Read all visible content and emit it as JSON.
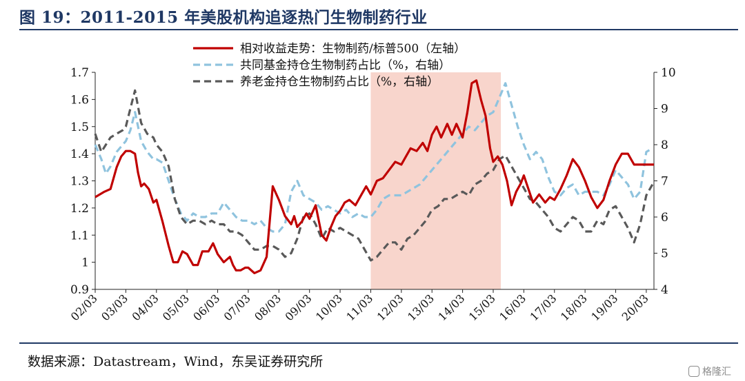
{
  "title": "图 19：2011-2015 年美股机构追逐热门生物制药行业",
  "source": "数据来源：Datastream，Wind，东吴证券研究所",
  "watermark": "格隆汇",
  "chart_data": {
    "type": "line",
    "xlabel": "",
    "ylabel_left": "",
    "ylabel_right": "",
    "ylim_left": [
      0.9,
      1.7
    ],
    "yticks_left": [
      "0.9",
      "1",
      "1.1",
      "1.2",
      "1.3",
      "1.4",
      "1.5",
      "1.6",
      "1.7"
    ],
    "ylim_right": [
      4,
      10
    ],
    "yticks_right": [
      "4",
      "5",
      "6",
      "7",
      "8",
      "9",
      "10"
    ],
    "x_range": [
      2002.0,
      2020.25
    ],
    "x_tick_labels": [
      "02/03",
      "03/03",
      "04/03",
      "05/03",
      "06/03",
      "07/03",
      "08/03",
      "09/03",
      "10/03",
      "11/03",
      "12/03",
      "13/03",
      "14/03",
      "15/03",
      "16/03",
      "17/03",
      "18/03",
      "19/03",
      "20/03"
    ],
    "shaded_region": [
      2011.0,
      2015.25
    ],
    "colors": {
      "series1": "#c00000",
      "series2": "#8fc3de",
      "series3": "#595959",
      "shade": "#f8d5cc"
    },
    "series": [
      {
        "name": "相对收益走势：生物制药/标普500（左轴）",
        "axis": "left",
        "style": "solid",
        "x": [
          2002.0,
          2002.3,
          2002.5,
          2002.7,
          2002.85,
          2003.0,
          2003.15,
          2003.3,
          2003.4,
          2003.5,
          2003.6,
          2003.75,
          2003.9,
          2004.0,
          2004.2,
          2004.4,
          2004.55,
          2004.7,
          2004.85,
          2005.0,
          2005.2,
          2005.35,
          2005.5,
          2005.7,
          2005.85,
          2006.0,
          2006.2,
          2006.4,
          2006.5,
          2006.6,
          2006.75,
          2006.9,
          2007.0,
          2007.2,
          2007.4,
          2007.6,
          2007.8,
          2008.0,
          2008.2,
          2008.4,
          2008.5,
          2008.6,
          2008.75,
          2008.9,
          2009.0,
          2009.2,
          2009.4,
          2009.55,
          2009.7,
          2009.85,
          2010.0,
          2010.15,
          2010.3,
          2010.5,
          2010.7,
          2010.85,
          2011.0,
          2011.2,
          2011.4,
          2011.6,
          2011.8,
          2012.0,
          2012.15,
          2012.3,
          2012.5,
          2012.7,
          2012.85,
          2013.0,
          2013.15,
          2013.3,
          2013.5,
          2013.65,
          2013.8,
          2014.0,
          2014.15,
          2014.3,
          2014.45,
          2014.6,
          2014.75,
          2014.9,
          2015.0,
          2015.15,
          2015.3,
          2015.45,
          2015.6,
          2015.75,
          2015.9,
          2016.0,
          2016.15,
          2016.3,
          2016.5,
          2016.7,
          2016.85,
          2017.0,
          2017.2,
          2017.4,
          2017.6,
          2017.8,
          2018.0,
          2018.2,
          2018.4,
          2018.6,
          2018.8,
          2019.0,
          2019.2,
          2019.4,
          2019.6,
          2019.8,
          2020.0,
          2020.2,
          2020.25
        ],
        "values": [
          1.24,
          1.26,
          1.27,
          1.35,
          1.39,
          1.41,
          1.41,
          1.4,
          1.33,
          1.28,
          1.29,
          1.27,
          1.22,
          1.23,
          1.15,
          1.06,
          1.0,
          1.0,
          1.04,
          1.03,
          0.99,
          0.99,
          1.04,
          1.04,
          1.07,
          1.03,
          1.0,
          1.02,
          0.99,
          0.97,
          0.97,
          0.98,
          0.98,
          0.96,
          0.97,
          1.02,
          1.28,
          1.23,
          1.17,
          1.14,
          1.17,
          1.13,
          1.15,
          1.18,
          1.16,
          1.21,
          1.1,
          1.08,
          1.13,
          1.17,
          1.19,
          1.22,
          1.23,
          1.21,
          1.25,
          1.28,
          1.25,
          1.3,
          1.31,
          1.34,
          1.37,
          1.36,
          1.39,
          1.42,
          1.41,
          1.44,
          1.41,
          1.47,
          1.5,
          1.46,
          1.51,
          1.47,
          1.51,
          1.46,
          1.55,
          1.66,
          1.67,
          1.6,
          1.54,
          1.42,
          1.37,
          1.39,
          1.36,
          1.3,
          1.21,
          1.26,
          1.29,
          1.32,
          1.27,
          1.22,
          1.25,
          1.22,
          1.24,
          1.23,
          1.27,
          1.32,
          1.38,
          1.35,
          1.3,
          1.24,
          1.2,
          1.23,
          1.3,
          1.36,
          1.4,
          1.4,
          1.36,
          1.36,
          1.36,
          1.36,
          1.36
        ]
      },
      {
        "name": "共同基金持仓生物制药占比（%，右轴）",
        "axis": "right",
        "style": "dashed",
        "x": [
          2002.0,
          2002.2,
          2002.35,
          2002.5,
          2002.7,
          2002.9,
          2003.0,
          2003.15,
          2003.3,
          2003.5,
          2003.7,
          2003.9,
          2004.0,
          2004.2,
          2004.4,
          2004.6,
          2004.8,
          2005.0,
          2005.2,
          2005.4,
          2005.6,
          2005.8,
          2006.0,
          2006.2,
          2006.4,
          2006.6,
          2006.8,
          2007.0,
          2007.2,
          2007.4,
          2007.6,
          2007.8,
          2008.0,
          2008.2,
          2008.4,
          2008.6,
          2008.8,
          2009.0,
          2009.2,
          2009.4,
          2009.6,
          2009.8,
          2010.0,
          2010.2,
          2010.4,
          2010.6,
          2010.8,
          2011.0,
          2011.2,
          2011.4,
          2011.6,
          2011.8,
          2012.0,
          2012.2,
          2012.4,
          2012.6,
          2012.8,
          2013.0,
          2013.2,
          2013.4,
          2013.6,
          2013.8,
          2014.0,
          2014.2,
          2014.4,
          2014.6,
          2014.8,
          2015.0,
          2015.2,
          2015.4,
          2015.6,
          2015.8,
          2016.0,
          2016.2,
          2016.4,
          2016.6,
          2016.8,
          2017.0,
          2017.2,
          2017.4,
          2017.6,
          2017.8,
          2018.0,
          2018.2,
          2018.4,
          2018.6,
          2018.8,
          2019.0,
          2019.2,
          2019.4,
          2019.6,
          2019.8,
          2020.0,
          2020.2
        ],
        "values": [
          8.0,
          7.6,
          7.2,
          7.4,
          7.8,
          8.0,
          8.1,
          8.4,
          8.9,
          8.1,
          7.8,
          7.6,
          7.6,
          7.5,
          7.0,
          6.5,
          6.1,
          5.9,
          6.1,
          6.0,
          6.0,
          6.1,
          6.1,
          6.4,
          6.2,
          6.0,
          5.9,
          5.9,
          5.8,
          5.9,
          5.7,
          5.6,
          5.6,
          5.8,
          6.7,
          7.0,
          6.6,
          6.5,
          6.4,
          6.2,
          6.3,
          6.2,
          6.1,
          6.2,
          6.0,
          6.1,
          6.0,
          6.0,
          6.2,
          6.5,
          6.6,
          6.6,
          6.6,
          6.7,
          6.8,
          6.9,
          7.1,
          7.3,
          7.5,
          7.7,
          7.9,
          8.1,
          8.3,
          8.5,
          8.4,
          8.6,
          8.8,
          8.9,
          9.3,
          9.7,
          9.1,
          8.5,
          8.0,
          7.6,
          7.8,
          7.6,
          7.1,
          6.7,
          6.6,
          6.8,
          6.9,
          6.6,
          6.7,
          6.7,
          6.7,
          6.6,
          6.9,
          7.3,
          7.1,
          6.9,
          6.5,
          6.7,
          7.8,
          7.9
        ]
      },
      {
        "name": "养老金持仓生物制药占比（%，右轴）",
        "axis": "right",
        "style": "dashed",
        "x": [
          2002.0,
          2002.2,
          2002.35,
          2002.5,
          2002.7,
          2002.9,
          2003.0,
          2003.15,
          2003.3,
          2003.5,
          2003.7,
          2003.9,
          2004.0,
          2004.2,
          2004.4,
          2004.6,
          2004.8,
          2005.0,
          2005.2,
          2005.4,
          2005.6,
          2005.8,
          2006.0,
          2006.2,
          2006.4,
          2006.6,
          2006.8,
          2007.0,
          2007.2,
          2007.4,
          2007.6,
          2007.8,
          2008.0,
          2008.2,
          2008.4,
          2008.6,
          2008.8,
          2009.0,
          2009.2,
          2009.4,
          2009.6,
          2009.8,
          2010.0,
          2010.2,
          2010.4,
          2010.6,
          2010.8,
          2011.0,
          2011.2,
          2011.4,
          2011.6,
          2011.8,
          2012.0,
          2012.2,
          2012.4,
          2012.6,
          2012.8,
          2013.0,
          2013.2,
          2013.4,
          2013.6,
          2013.8,
          2014.0,
          2014.2,
          2014.4,
          2014.6,
          2014.8,
          2015.0,
          2015.2,
          2015.4,
          2015.6,
          2015.8,
          2016.0,
          2016.2,
          2016.4,
          2016.6,
          2016.8,
          2017.0,
          2017.2,
          2017.4,
          2017.6,
          2017.8,
          2018.0,
          2018.2,
          2018.4,
          2018.6,
          2018.8,
          2019.0,
          2019.2,
          2019.4,
          2019.6,
          2019.8,
          2020.0,
          2020.2
        ],
        "values": [
          8.3,
          7.8,
          8.0,
          8.2,
          8.3,
          8.4,
          8.5,
          9.0,
          9.5,
          8.6,
          8.3,
          8.2,
          8.0,
          7.8,
          7.4,
          6.5,
          6.0,
          5.8,
          5.9,
          5.9,
          5.8,
          5.9,
          5.8,
          5.8,
          5.6,
          5.6,
          5.5,
          5.3,
          5.1,
          5.1,
          5.2,
          5.2,
          5.1,
          4.9,
          5.0,
          5.4,
          6.0,
          6.1,
          5.8,
          5.4,
          5.7,
          5.6,
          5.7,
          5.6,
          5.5,
          5.4,
          5.1,
          4.8,
          4.9,
          5.1,
          5.3,
          5.3,
          5.1,
          5.4,
          5.5,
          5.7,
          5.9,
          6.2,
          6.3,
          6.5,
          6.5,
          6.6,
          6.7,
          6.6,
          6.9,
          7.0,
          7.2,
          7.3,
          7.6,
          7.7,
          7.4,
          7.1,
          6.8,
          6.5,
          6.4,
          6.2,
          6.0,
          5.7,
          5.6,
          5.8,
          6.0,
          5.9,
          5.6,
          5.6,
          5.9,
          5.8,
          6.2,
          6.3,
          6.0,
          5.7,
          5.3,
          5.8,
          6.6,
          6.9
        ]
      }
    ]
  }
}
